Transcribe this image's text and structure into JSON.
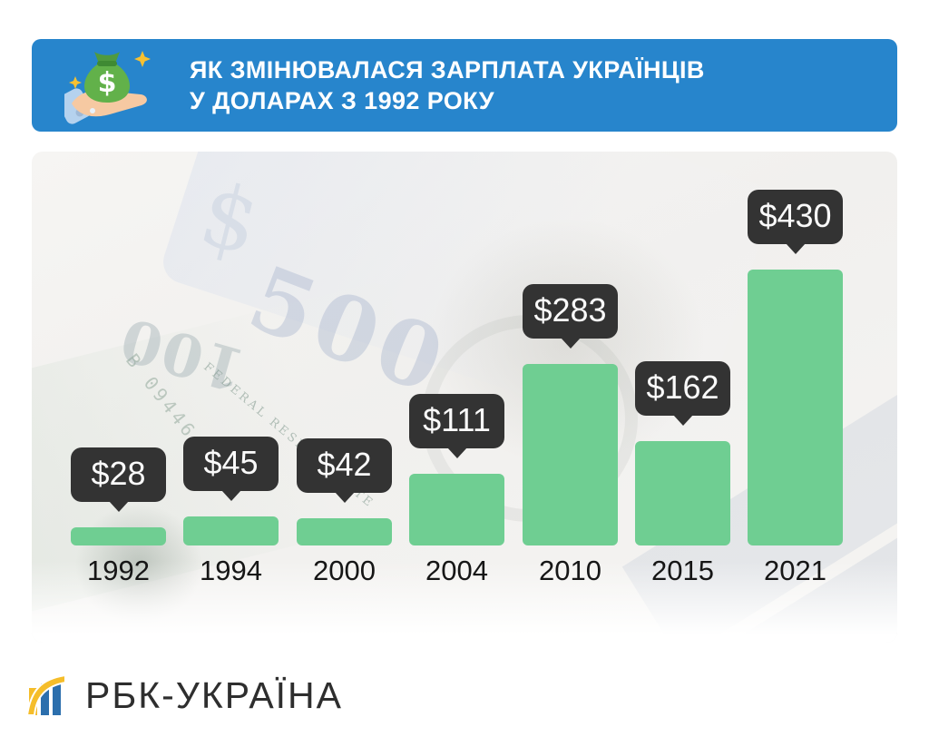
{
  "header": {
    "title_line1": "ЯК ЗМІНЮВАЛАСЯ ЗАРПЛАТА УКРАЇНЦІВ",
    "title_line2": "У ДОЛАРАХ З 1992 РОКУ",
    "bg_color": "#2785cc",
    "icon": "money-bag-in-hand-icon"
  },
  "chart_data": {
    "type": "bar",
    "title": "ЯК ЗМІНЮВАЛАСЯ ЗАРПЛАТА УКРАЇНЦІВ У ДОЛАРАХ З 1992 РОКУ",
    "categories": [
      "1992",
      "1994",
      "2000",
      "2004",
      "2010",
      "2015",
      "2021"
    ],
    "values": [
      28,
      45,
      42,
      111,
      283,
      162,
      430
    ],
    "labels": [
      "$28",
      "$45",
      "$42",
      "$111",
      "$283",
      "$162",
      "$430"
    ],
    "unit": "USD",
    "ylim": [
      0,
      450
    ],
    "grid": false,
    "legend": false,
    "bar_color": "#6fce92",
    "label_bubble_color": "#333333",
    "year_text_color": "#161616"
  },
  "background_watermarks": {
    "w500": "500",
    "w100": "100",
    "federal": "FEDERAL RESERVE NOTE",
    "serial": "B 09446485 0",
    "dollar": "$"
  },
  "footer": {
    "brand": "РБК-УКРАЇНА",
    "logo_blue": "#2c6fad",
    "logo_yellow": "#f5bd2a"
  }
}
